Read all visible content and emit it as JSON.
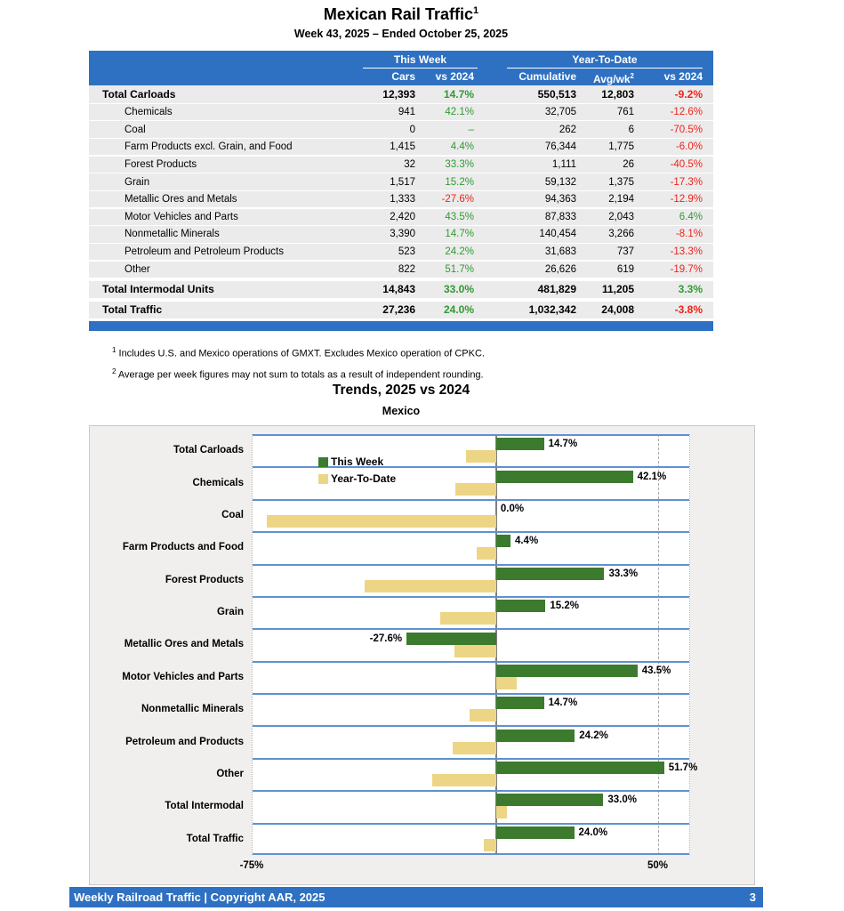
{
  "page": {
    "title": "Mexican Rail Traffic",
    "title_sup": "1",
    "subtitle": "Week 43, 2025 – Ended October 25, 2025"
  },
  "table": {
    "group_headers": {
      "this_week": "This Week",
      "ytd": "Year-To-Date"
    },
    "columns": {
      "cars": "Cars",
      "wk_vs": "vs 2024",
      "cumulative": "Cumulative",
      "avg_wk": "Avg/wk",
      "avg_wk_sup": "2",
      "ytd_vs": "vs 2024"
    },
    "rows": [
      {
        "label": "Total Carloads",
        "cars": "12,393",
        "wk_vs": "14.7%",
        "cumulative": "550,513",
        "avg_wk": "12,803",
        "ytd_vs": "-9.2%",
        "total": true,
        "gap_before": false
      },
      {
        "label": "Chemicals",
        "cars": "941",
        "wk_vs": "42.1%",
        "cumulative": "32,705",
        "avg_wk": "761",
        "ytd_vs": "-12.6%",
        "total": false,
        "gap_before": false
      },
      {
        "label": "Coal",
        "cars": "0",
        "wk_vs": "–",
        "cumulative": "262",
        "avg_wk": "6",
        "ytd_vs": "-70.5%",
        "total": false,
        "gap_before": false
      },
      {
        "label": "Farm Products excl. Grain, and Food",
        "cars": "1,415",
        "wk_vs": "4.4%",
        "cumulative": "76,344",
        "avg_wk": "1,775",
        "ytd_vs": "-6.0%",
        "total": false,
        "gap_before": false
      },
      {
        "label": "Forest Products",
        "cars": "32",
        "wk_vs": "33.3%",
        "cumulative": "1,111",
        "avg_wk": "26",
        "ytd_vs": "-40.5%",
        "total": false,
        "gap_before": false
      },
      {
        "label": "Grain",
        "cars": "1,517",
        "wk_vs": "15.2%",
        "cumulative": "59,132",
        "avg_wk": "1,375",
        "ytd_vs": "-17.3%",
        "total": false,
        "gap_before": false
      },
      {
        "label": "Metallic Ores and Metals",
        "cars": "1,333",
        "wk_vs": "-27.6%",
        "cumulative": "94,363",
        "avg_wk": "2,194",
        "ytd_vs": "-12.9%",
        "total": false,
        "gap_before": false
      },
      {
        "label": "Motor Vehicles and Parts",
        "cars": "2,420",
        "wk_vs": "43.5%",
        "cumulative": "87,833",
        "avg_wk": "2,043",
        "ytd_vs": "6.4%",
        "total": false,
        "gap_before": false
      },
      {
        "label": "Nonmetallic Minerals",
        "cars": "3,390",
        "wk_vs": "14.7%",
        "cumulative": "140,454",
        "avg_wk": "3,266",
        "ytd_vs": "-8.1%",
        "total": false,
        "gap_before": false
      },
      {
        "label": "Petroleum and Petroleum Products",
        "cars": "523",
        "wk_vs": "24.2%",
        "cumulative": "31,683",
        "avg_wk": "737",
        "ytd_vs": "-13.3%",
        "total": false,
        "gap_before": false
      },
      {
        "label": "Other",
        "cars": "822",
        "wk_vs": "51.7%",
        "cumulative": "26,626",
        "avg_wk": "619",
        "ytd_vs": "-19.7%",
        "total": false,
        "gap_before": false
      },
      {
        "label": "Total Intermodal Units",
        "cars": "14,843",
        "wk_vs": "33.0%",
        "cumulative": "481,829",
        "avg_wk": "11,205",
        "ytd_vs": "3.3%",
        "total": true,
        "gap_before": true
      },
      {
        "label": "Total Traffic",
        "cars": "27,236",
        "wk_vs": "24.0%",
        "cumulative": "1,032,342",
        "avg_wk": "24,008",
        "ytd_vs": "-3.8%",
        "total": true,
        "gap_before": true
      }
    ]
  },
  "footnotes": [
    {
      "sup": "1",
      "text": "Includes U.S. and Mexico operations of GMXT. Excludes Mexico operation of CPKC."
    },
    {
      "sup": "2",
      "text": "Average per week figures may not sum to totals as a result of independent rounding."
    }
  ],
  "chart": {
    "title": "Trends, 2025 vs 2024",
    "subtitle": "Mexico"
  },
  "chart_data": {
    "type": "bar",
    "orientation": "horizontal",
    "title": "Trends, 2025 vs 2024",
    "subtitle": "Mexico",
    "categories": [
      "Total Carloads",
      "Chemicals",
      "Coal",
      "Farm Products and Food",
      "Forest Products",
      "Grain",
      "Metallic Ores and Metals",
      "Motor Vehicles and Parts",
      "Nonmetallic Minerals",
      "Petroleum and Products",
      "Other",
      "Total Intermodal",
      "Total Traffic"
    ],
    "series": [
      {
        "name": "This Week",
        "color": "#3c7a2e",
        "values": [
          14.7,
          42.1,
          0.0,
          4.4,
          33.3,
          15.2,
          -27.6,
          43.5,
          14.7,
          24.2,
          51.7,
          33.0,
          24.0
        ],
        "labels": [
          "14.7%",
          "42.1%",
          "0.0%",
          "4.4%",
          "33.3%",
          "15.2%",
          "-27.6%",
          "43.5%",
          "14.7%",
          "24.2%",
          "51.7%",
          "33.0%",
          "24.0%"
        ]
      },
      {
        "name": "Year-To-Date",
        "color": "#ecd585",
        "values": [
          -9.2,
          -12.6,
          -70.5,
          -6.0,
          -40.5,
          -17.3,
          -12.9,
          6.4,
          -8.1,
          -13.3,
          -19.7,
          3.3,
          -3.8
        ]
      }
    ],
    "xlim": [
      -75,
      60
    ],
    "ticks": [
      {
        "value": -75,
        "label": "-75%"
      },
      {
        "value": 50,
        "label": "50%"
      }
    ],
    "grid": "vertical-dashed-at-50",
    "legend_position": "inside-top-left"
  },
  "footer": {
    "text": "Weekly Railroad Traffic | Copyright AAR, 2025",
    "page": "3"
  },
  "colors": {
    "header_blue": "#2e70c1",
    "positive_green": "#2f9a32",
    "negative_red": "#ee231b",
    "bar_green": "#3c7a2e",
    "bar_tan": "#ecd585",
    "row_gray": "#ebebeb",
    "separator_blue": "#6091d0"
  }
}
